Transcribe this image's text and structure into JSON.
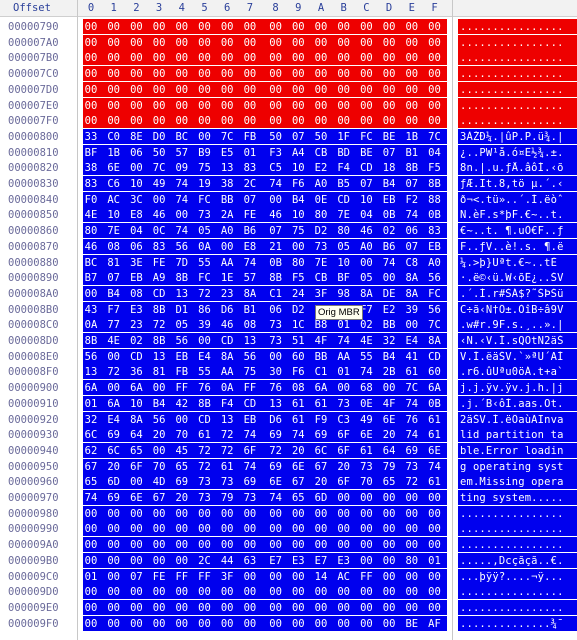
{
  "header": {
    "offset_label": "Offset",
    "columns": [
      "0",
      "1",
      "2",
      "3",
      "4",
      "5",
      "6",
      "7",
      "8",
      "9",
      "A",
      "B",
      "C",
      "D",
      "E",
      "F"
    ]
  },
  "tooltip": "Orig MBR",
  "colors": {
    "zero_fill": "#ee0000",
    "mbr_fill": "#0000ee",
    "header_text": "#2a3f9a"
  },
  "rows": [
    {
      "offset": "00000790",
      "bytes": "00 00 00 00 00 00 00 00 00 00 00 00 00 00 00 00",
      "ascii": "................",
      "type": "zero"
    },
    {
      "offset": "000007A0",
      "bytes": "00 00 00 00 00 00 00 00 00 00 00 00 00 00 00 00",
      "ascii": "................",
      "type": "zero"
    },
    {
      "offset": "000007B0",
      "bytes": "00 00 00 00 00 00 00 00 00 00 00 00 00 00 00 00",
      "ascii": "................",
      "type": "zero"
    },
    {
      "offset": "000007C0",
      "bytes": "00 00 00 00 00 00 00 00 00 00 00 00 00 00 00 00",
      "ascii": "................",
      "type": "zero"
    },
    {
      "offset": "000007D0",
      "bytes": "00 00 00 00 00 00 00 00 00 00 00 00 00 00 00 00",
      "ascii": "................",
      "type": "zero"
    },
    {
      "offset": "000007E0",
      "bytes": "00 00 00 00 00 00 00 00 00 00 00 00 00 00 00 00",
      "ascii": "................",
      "type": "zero"
    },
    {
      "offset": "000007F0",
      "bytes": "00 00 00 00 00 00 00 00 00 00 00 00 00 00 00 00",
      "ascii": "................",
      "type": "zero"
    },
    {
      "offset": "00000800",
      "bytes": "33 C0 8E D0 BC 00 7C FB 50 07 50 1F FC BE 1B 7C",
      "ascii": "3ÀŽÐ¼.|ûP.P.ü¾.|",
      "type": "mbr"
    },
    {
      "offset": "00000810",
      "bytes": "BF 1B 06 50 57 B9 E5 01 F3 A4 CB BD BE 07 B1 04",
      "ascii": "¿..PW¹å.ó¤Ë½¾.±.",
      "type": "mbr"
    },
    {
      "offset": "00000820",
      "bytes": "38 6E 00 7C 09 75 13 83 C5 10 E2 F4 CD 18 8B F5",
      "ascii": "8n.|.u.ƒÅ.âôÍ.‹õ",
      "type": "mbr"
    },
    {
      "offset": "00000830",
      "bytes": "83 C6 10 49 74 19 38 2C 74 F6 A0 B5 07 B4 07 8B",
      "ascii": "ƒÆ.It.8,tö µ.´.‹",
      "type": "mbr"
    },
    {
      "offset": "00000840",
      "bytes": "F0 AC 3C 00 74 FC BB 07 00 B4 0E CD 10 EB F2 88",
      "ascii": "ð¬<.tü»..´.Í.ëòˆ",
      "type": "mbr"
    },
    {
      "offset": "00000850",
      "bytes": "4E 10 E8 46 00 73 2A FE 46 10 80 7E 04 0B 74 0B",
      "ascii": "N.èF.s*þF.€~..t.",
      "type": "mbr"
    },
    {
      "offset": "00000860",
      "bytes": "80 7E 04 0C 74 05 A0 B6 07 75 D2 80 46 02 06 83",
      "ascii": "€~..t. ¶.uÒ€F..ƒ",
      "type": "mbr"
    },
    {
      "offset": "00000870",
      "bytes": "46 08 06 83 56 0A 00 E8 21 00 73 05 A0 B6 07 EB",
      "ascii": "F..ƒV..è!.s. ¶.ë",
      "type": "mbr"
    },
    {
      "offset": "00000880",
      "bytes": "BC 81 3E FE 7D 55 AA 74 0B 80 7E 10 00 74 C8 A0",
      "ascii": "¼.>þ}Uªt.€~..tÈ ",
      "type": "mbr"
    },
    {
      "offset": "00000890",
      "bytes": "B7 07 EB A9 8B FC 1E 57 8B F5 CB BF 05 00 8A 56",
      "ascii": "·.ë©‹ü.W‹õË¿..ŠV",
      "type": "mbr"
    },
    {
      "offset": "000008A0",
      "bytes": "00 B4 08 CD 13 72 23 8A C1 24 3F 98 8A DE 8A FC",
      "ascii": ".´.Í.r#ŠÁ$?˜ŠÞŠü",
      "type": "mbr"
    },
    {
      "offset": "000008B0",
      "bytes": "43 F7 E3 8B D1 86 D6 B1 06 D2 EE 42 F7 E2 39 56",
      "ascii": "C÷ã‹Ñ†Ö±.ÒîB÷â9V",
      "type": "mbr"
    },
    {
      "offset": "000008C0",
      "bytes": "0A 77 23 72 05 39 46 08 73 1C B8 01 02 BB 00 7C",
      "ascii": ".w#r.9F.s.¸..».|",
      "type": "mbr"
    },
    {
      "offset": "000008D0",
      "bytes": "8B 4E 02 8B 56 00 CD 13 73 51 4F 74 4E 32 E4 8A",
      "ascii": "‹N.‹V.Í.sQOtN2äŠ",
      "type": "mbr"
    },
    {
      "offset": "000008E0",
      "bytes": "56 00 CD 13 EB E4 8A 56 00 60 BB AA 55 B4 41 CD",
      "ascii": "V.Í.ëäŠV.`»ªU´AÍ",
      "type": "mbr"
    },
    {
      "offset": "000008F0",
      "bytes": "13 72 36 81 FB 55 AA 75 30 F6 C1 01 74 2B 61 60",
      "ascii": ".r6.ûUªu0öÁ.t+a`",
      "type": "mbr"
    },
    {
      "offset": "00000900",
      "bytes": "6A 00 6A 00 FF 76 0A FF 76 08 6A 00 68 00 7C 6A",
      "ascii": "j.j.ÿv.ÿv.j.h.|j",
      "type": "mbr"
    },
    {
      "offset": "00000910",
      "bytes": "01 6A 10 B4 42 8B F4 CD 13 61 61 73 0E 4F 74 0B",
      "ascii": ".j.´B‹ôÍ.aas.Ot.",
      "type": "mbr"
    },
    {
      "offset": "00000920",
      "bytes": "32 E4 8A 56 00 CD 13 EB D6 61 F9 C3 49 6E 76 61",
      "ascii": "2äŠV.Í.ëÖaùÃInva",
      "type": "mbr"
    },
    {
      "offset": "00000930",
      "bytes": "6C 69 64 20 70 61 72 74 69 74 69 6F 6E 20 74 61",
      "ascii": "lid partition ta",
      "type": "mbr"
    },
    {
      "offset": "00000940",
      "bytes": "62 6C 65 00 45 72 72 6F 72 20 6C 6F 61 64 69 6E",
      "ascii": "ble.Error loadin",
      "type": "mbr"
    },
    {
      "offset": "00000950",
      "bytes": "67 20 6F 70 65 72 61 74 69 6E 67 20 73 79 73 74",
      "ascii": "g operating syst",
      "type": "mbr"
    },
    {
      "offset": "00000960",
      "bytes": "65 6D 00 4D 69 73 73 69 6E 67 20 6F 70 65 72 61",
      "ascii": "em.Missing opera",
      "type": "mbr"
    },
    {
      "offset": "00000970",
      "bytes": "74 69 6E 67 20 73 79 73 74 65 6D 00 00 00 00 00",
      "ascii": "ting system.....",
      "type": "mbr"
    },
    {
      "offset": "00000980",
      "bytes": "00 00 00 00 00 00 00 00 00 00 00 00 00 00 00 00",
      "ascii": "................",
      "type": "mbr"
    },
    {
      "offset": "00000990",
      "bytes": "00 00 00 00 00 00 00 00 00 00 00 00 00 00 00 00",
      "ascii": "................",
      "type": "mbr"
    },
    {
      "offset": "000009A0",
      "bytes": "00 00 00 00 00 00 00 00 00 00 00 00 00 00 00 00",
      "ascii": "................",
      "type": "mbr"
    },
    {
      "offset": "000009B0",
      "bytes": "00 00 00 00 00 2C 44 63 E7 E3 E7 E3 00 00 80 01",
      "ascii": ".....,Dcçãçã..€.",
      "type": "mbr"
    },
    {
      "offset": "000009C0",
      "bytes": "01 00 07 FE FF FF 3F 00 00 00 14 AC FF 00 00 00",
      "ascii": "...þÿÿ?....¬ÿ...",
      "type": "mbr"
    },
    {
      "offset": "000009D0",
      "bytes": "00 00 00 00 00 00 00 00 00 00 00 00 00 00 00 00",
      "ascii": "................",
      "type": "mbr"
    },
    {
      "offset": "000009E0",
      "bytes": "00 00 00 00 00 00 00 00 00 00 00 00 00 00 00 00",
      "ascii": "................",
      "type": "mbr"
    },
    {
      "offset": "000009F0",
      "bytes": "00 00 00 00 00 00 00 00 00 00 00 00 00 00 BE AF",
      "ascii": "..............¾¯",
      "type": "mbr"
    }
  ]
}
